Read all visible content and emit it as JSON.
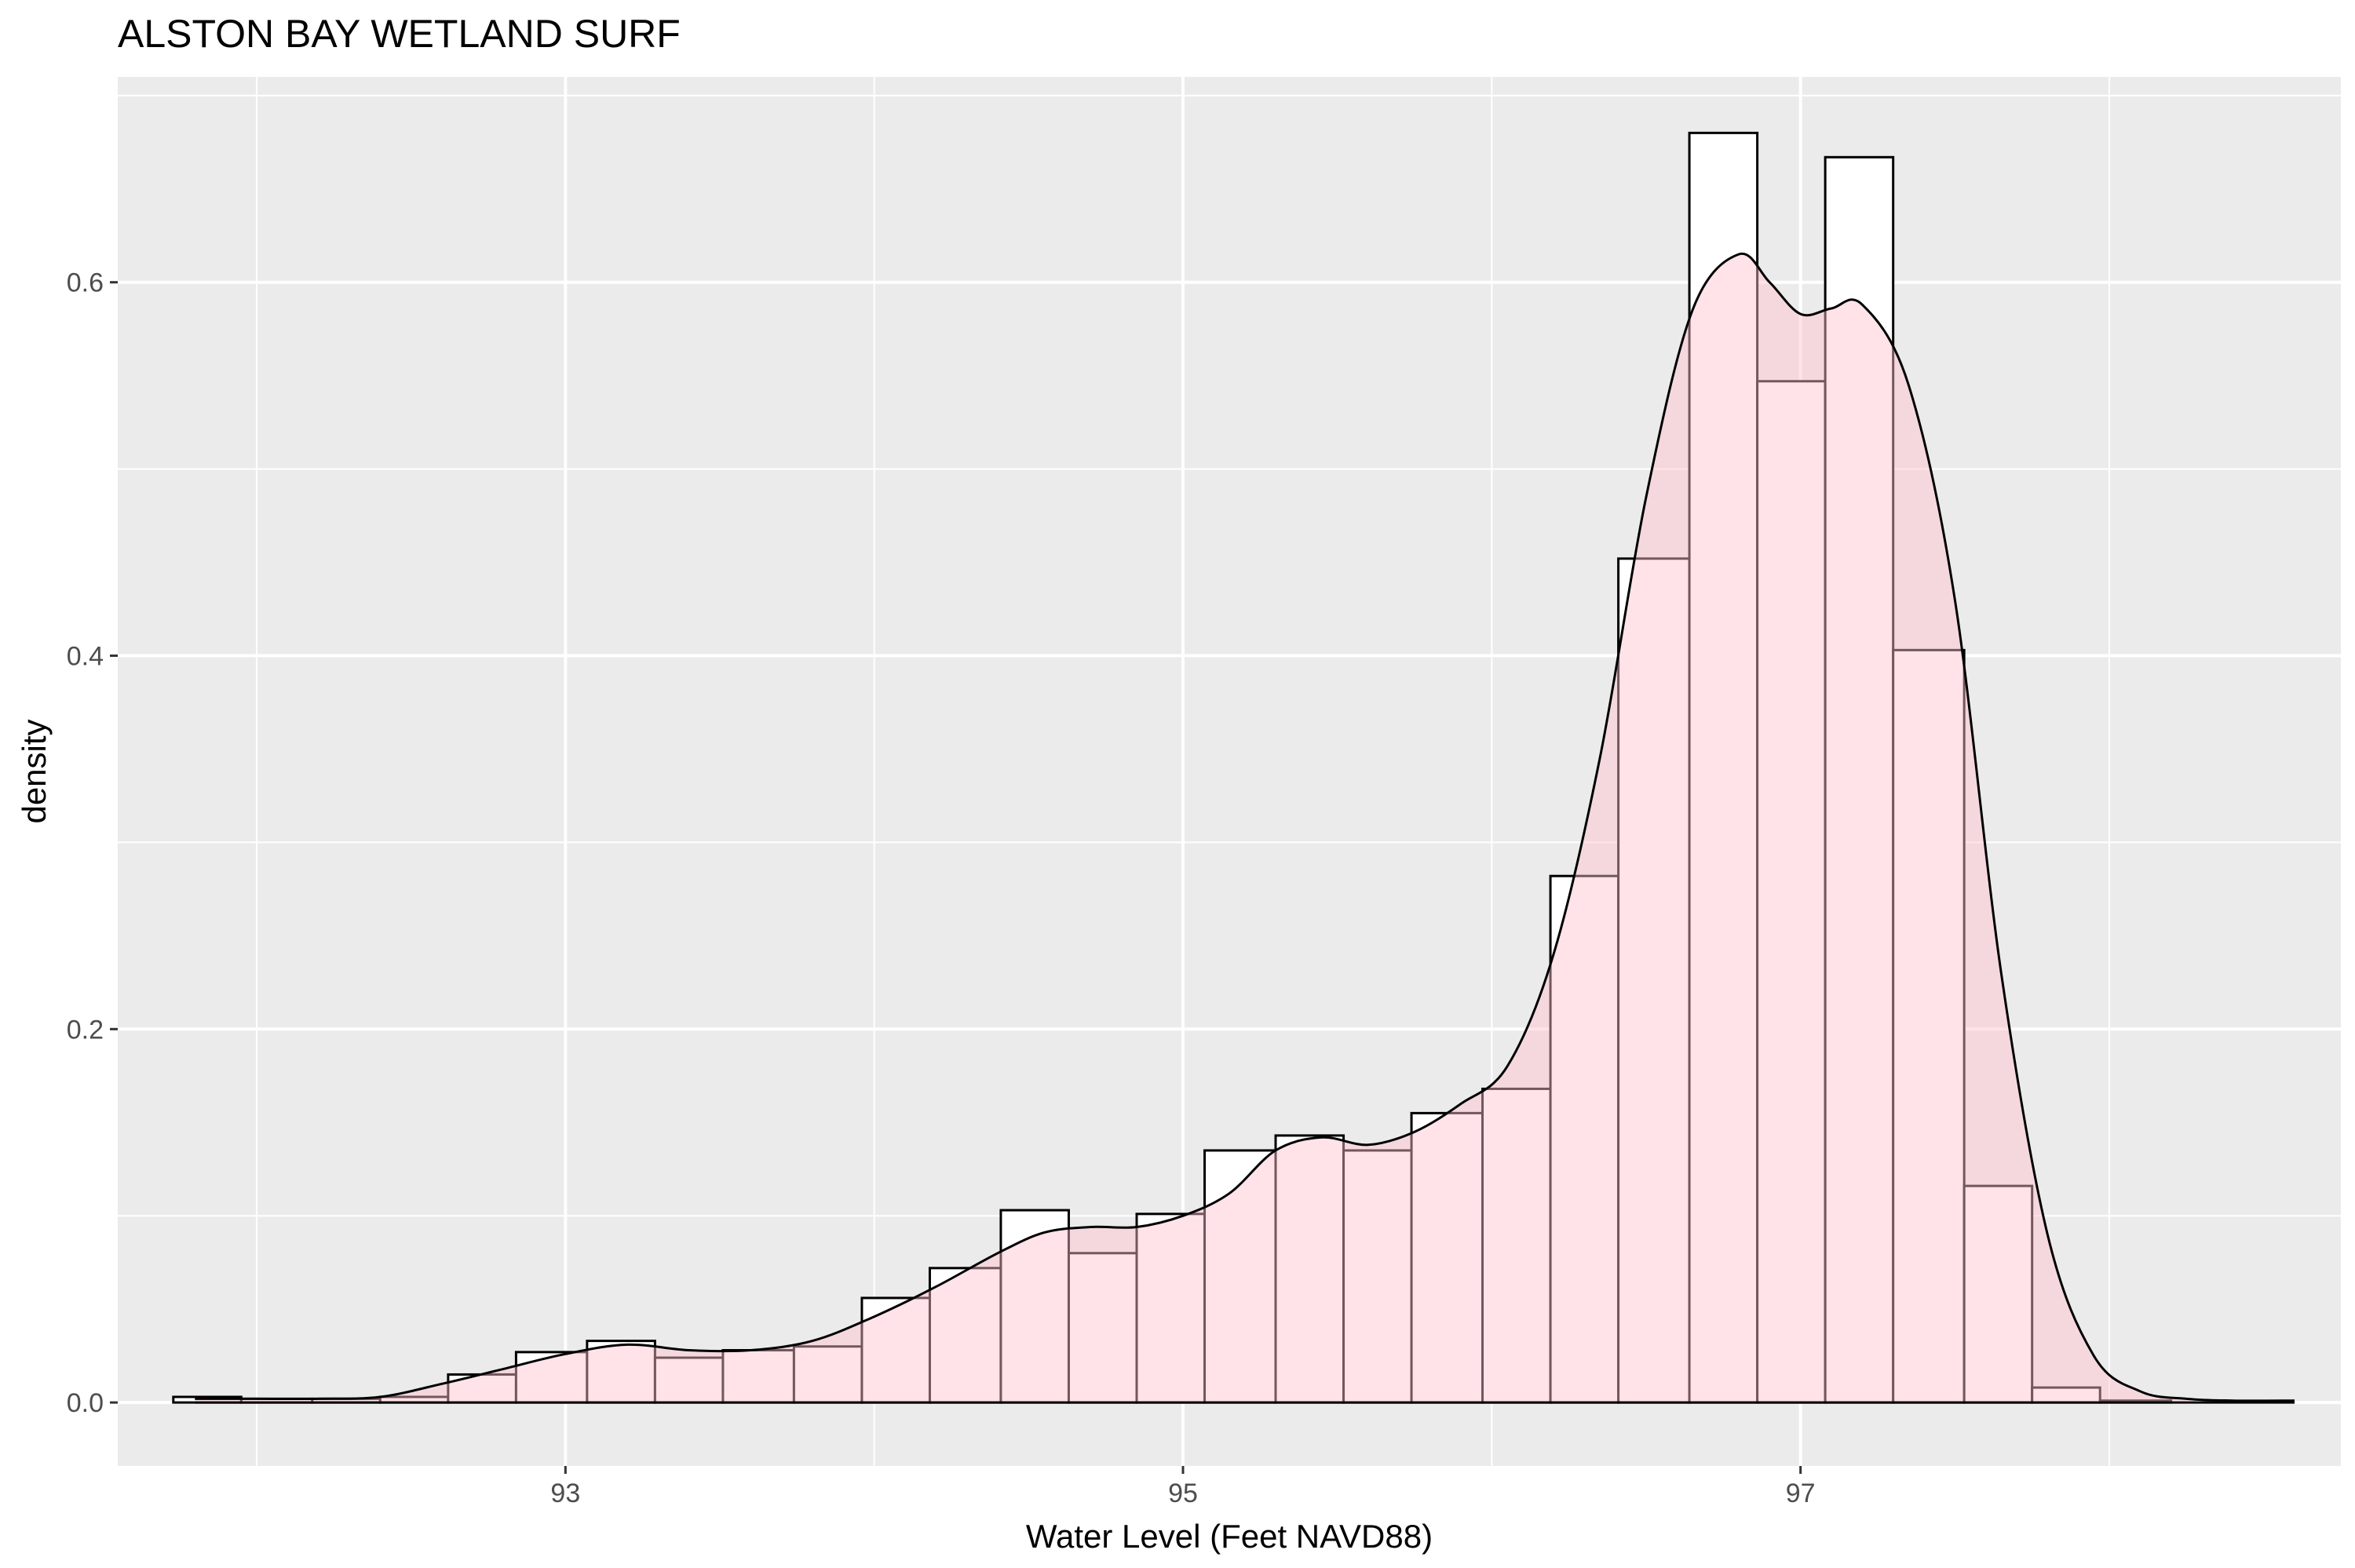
{
  "chart_data": {
    "type": "histogram-density",
    "title": "ALSTON BAY WETLAND SURF",
    "xlabel": "Water Level (Feet NAVD88)",
    "ylabel": "density",
    "xlim": [
      91.55,
      98.75
    ],
    "ylim": [
      -0.034,
      0.71
    ],
    "x_ticks": [
      93,
      95,
      97
    ],
    "x_tick_labels": [
      "93",
      "95",
      "97"
    ],
    "x_minor_ticks": [
      92,
      94,
      96,
      98
    ],
    "y_ticks": [
      0.0,
      0.2,
      0.4,
      0.6
    ],
    "y_tick_labels": [
      "0.0",
      "0.2",
      "0.4",
      "0.6"
    ],
    "y_minor_ticks": [
      0.1,
      0.3,
      0.5,
      0.7
    ],
    "grid": true,
    "panel_background": "#ebebeb",
    "gridline_color": "#ffffff",
    "bar_fill": "#ffffff",
    "bar_outline": "#000000",
    "density_fill": "#ffc0cb",
    "density_fill_opacity": 0.45,
    "density_line_color": "#000000",
    "bins": {
      "edges": [
        91.73,
        91.95,
        92.18,
        92.4,
        92.62,
        92.84,
        93.07,
        93.29,
        93.51,
        93.74,
        93.96,
        94.18,
        94.41,
        94.63,
        94.85,
        95.07,
        95.3,
        95.52,
        95.74,
        95.97,
        96.19,
        96.41,
        96.64,
        96.86,
        97.08,
        97.3,
        97.53,
        97.75,
        97.97,
        98.2
      ],
      "density": [
        0.003,
        0.002,
        0.002,
        0.003,
        0.015,
        0.027,
        0.033,
        0.024,
        0.028,
        0.03,
        0.056,
        0.072,
        0.103,
        0.08,
        0.101,
        0.135,
        0.143,
        0.135,
        0.155,
        0.168,
        0.282,
        0.452,
        0.68,
        0.547,
        0.667,
        0.403,
        0.116,
        0.008,
        0.001
      ]
    },
    "density_curve": {
      "x": [
        91.8,
        92.0,
        92.2,
        92.4,
        92.6,
        92.8,
        93.0,
        93.2,
        93.4,
        93.6,
        93.8,
        94.0,
        94.2,
        94.4,
        94.55,
        94.7,
        94.85,
        95.0,
        95.15,
        95.3,
        95.45,
        95.6,
        95.75,
        95.9,
        96.05,
        96.2,
        96.35,
        96.5,
        96.65,
        96.8,
        96.9,
        97.0,
        97.1,
        97.2,
        97.35,
        97.5,
        97.65,
        97.8,
        97.95,
        98.1,
        98.25,
        98.4,
        98.6
      ],
      "y": [
        0.002,
        0.002,
        0.002,
        0.003,
        0.01,
        0.018,
        0.026,
        0.031,
        0.028,
        0.028,
        0.033,
        0.046,
        0.062,
        0.08,
        0.091,
        0.094,
        0.094,
        0.1,
        0.112,
        0.135,
        0.142,
        0.138,
        0.145,
        0.16,
        0.18,
        0.24,
        0.345,
        0.485,
        0.585,
        0.615,
        0.6,
        0.583,
        0.586,
        0.588,
        0.545,
        0.43,
        0.23,
        0.09,
        0.025,
        0.006,
        0.002,
        0.001,
        0.001
      ]
    }
  }
}
